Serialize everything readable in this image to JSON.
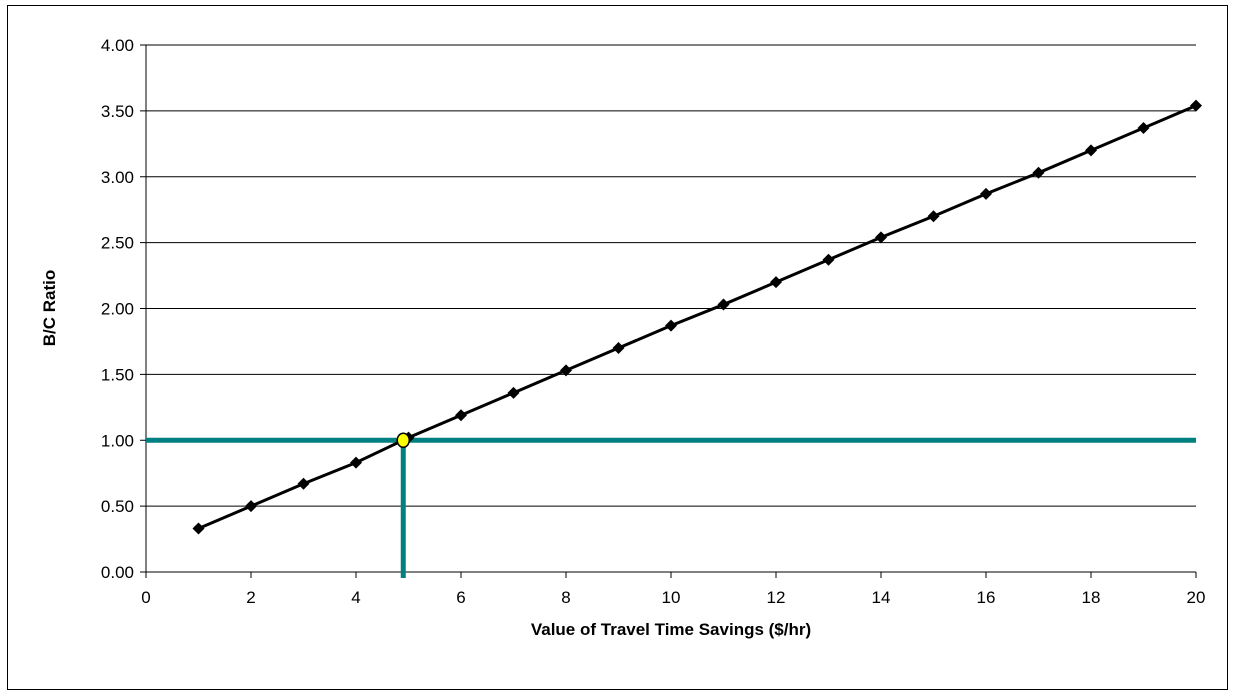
{
  "chart_data": {
    "type": "line",
    "title": "",
    "xlabel": "Value of Travel Time Savings ($/hr)",
    "ylabel": "B/C Ratio",
    "xlim": [
      0,
      20
    ],
    "ylim": [
      0,
      4
    ],
    "x_ticks": [
      "0",
      "2",
      "4",
      "6",
      "8",
      "10",
      "12",
      "14",
      "16",
      "18",
      "20"
    ],
    "y_ticks": [
      "0.00",
      "0.50",
      "1.00",
      "1.50",
      "2.00",
      "2.50",
      "3.00",
      "3.50",
      "4.00"
    ],
    "grid": "horizontal",
    "legend": "none",
    "series": [
      {
        "marker": "diamond",
        "color": "#000000",
        "x": [
          1,
          2,
          3,
          4,
          5,
          6,
          7,
          8,
          9,
          10,
          11,
          12,
          13,
          14,
          15,
          16,
          17,
          18,
          19,
          20
        ],
        "y": [
          0.33,
          0.5,
          0.67,
          0.83,
          1.02,
          1.19,
          1.36,
          1.53,
          1.7,
          1.87,
          2.03,
          2.2,
          2.37,
          2.54,
          2.7,
          2.87,
          3.03,
          3.2,
          3.37,
          3.54
        ]
      }
    ],
    "reference_lines": {
      "color": "#008080",
      "horizontal_y": 1.0,
      "vertical_x": 4.9
    },
    "highlight_point": {
      "x": 4.9,
      "y": 1.0,
      "fill": "#ffff00",
      "stroke": "#000000"
    }
  }
}
